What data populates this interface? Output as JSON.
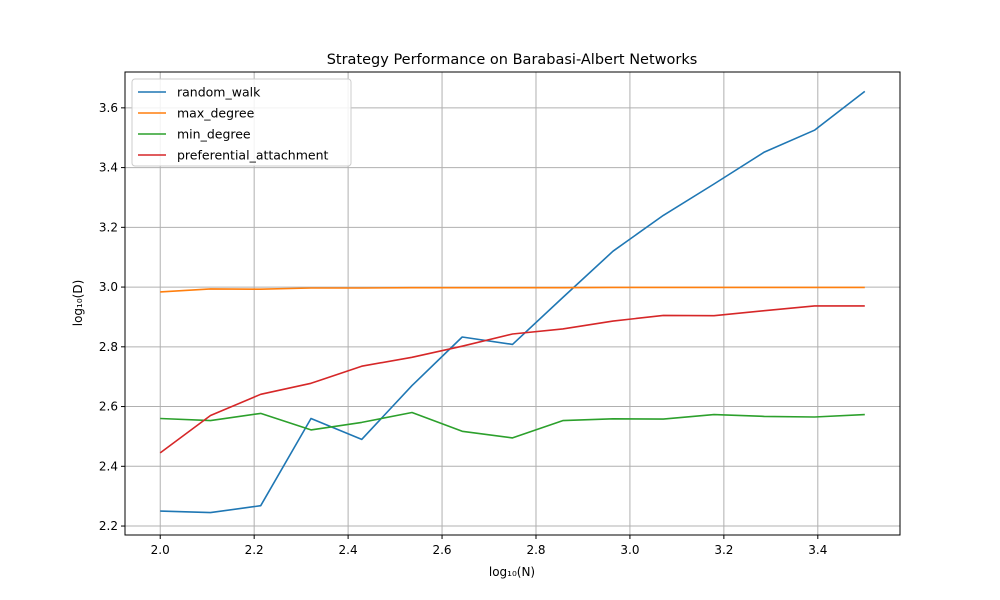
{
  "chart_data": {
    "type": "line",
    "title": "Strategy Performance on Barabasi-Albert Networks",
    "xlabel": "log₁₀(N)",
    "ylabel": "log₁₀(D)",
    "xlim": [
      1.925,
      3.575
    ],
    "ylim": [
      2.17,
      3.72
    ],
    "xticks": [
      "2.0",
      "2.2",
      "2.4",
      "2.6",
      "2.8",
      "3.0",
      "3.2",
      "3.4"
    ],
    "yticks": [
      "2.2",
      "2.4",
      "2.6",
      "2.8",
      "3.0",
      "3.2",
      "3.4",
      "3.6"
    ],
    "grid": true,
    "legend": "top-left",
    "x": [
      2.0,
      2.107,
      2.214,
      2.321,
      2.429,
      2.536,
      2.643,
      2.75,
      2.857,
      2.964,
      3.071,
      3.179,
      3.286,
      3.393,
      3.5
    ],
    "series": [
      {
        "name": "random_walk",
        "color": "#1f77b4",
        "values": [
          2.25,
          2.245,
          2.268,
          2.56,
          2.49,
          2.67,
          2.833,
          2.808,
          2.965,
          3.12,
          3.24,
          3.345,
          3.452,
          3.525,
          3.655
        ]
      },
      {
        "name": "max_degree",
        "color": "#ff7f0e",
        "values": [
          2.984,
          2.994,
          2.993,
          2.997,
          2.997,
          2.998,
          2.998,
          2.998,
          2.998,
          2.999,
          2.999,
          2.999,
          2.999,
          2.999,
          2.999
        ]
      },
      {
        "name": "min_degree",
        "color": "#2ca02c",
        "values": [
          2.56,
          2.553,
          2.577,
          2.522,
          2.547,
          2.58,
          2.517,
          2.495,
          2.553,
          2.559,
          2.558,
          2.573,
          2.567,
          2.565,
          2.573
        ]
      },
      {
        "name": "preferential_attachment",
        "color": "#d62728",
        "values": [
          2.445,
          2.57,
          2.641,
          2.678,
          2.735,
          2.765,
          2.802,
          2.843,
          2.86,
          2.886,
          2.905,
          2.904,
          2.921,
          2.937,
          2.937
        ]
      }
    ]
  }
}
